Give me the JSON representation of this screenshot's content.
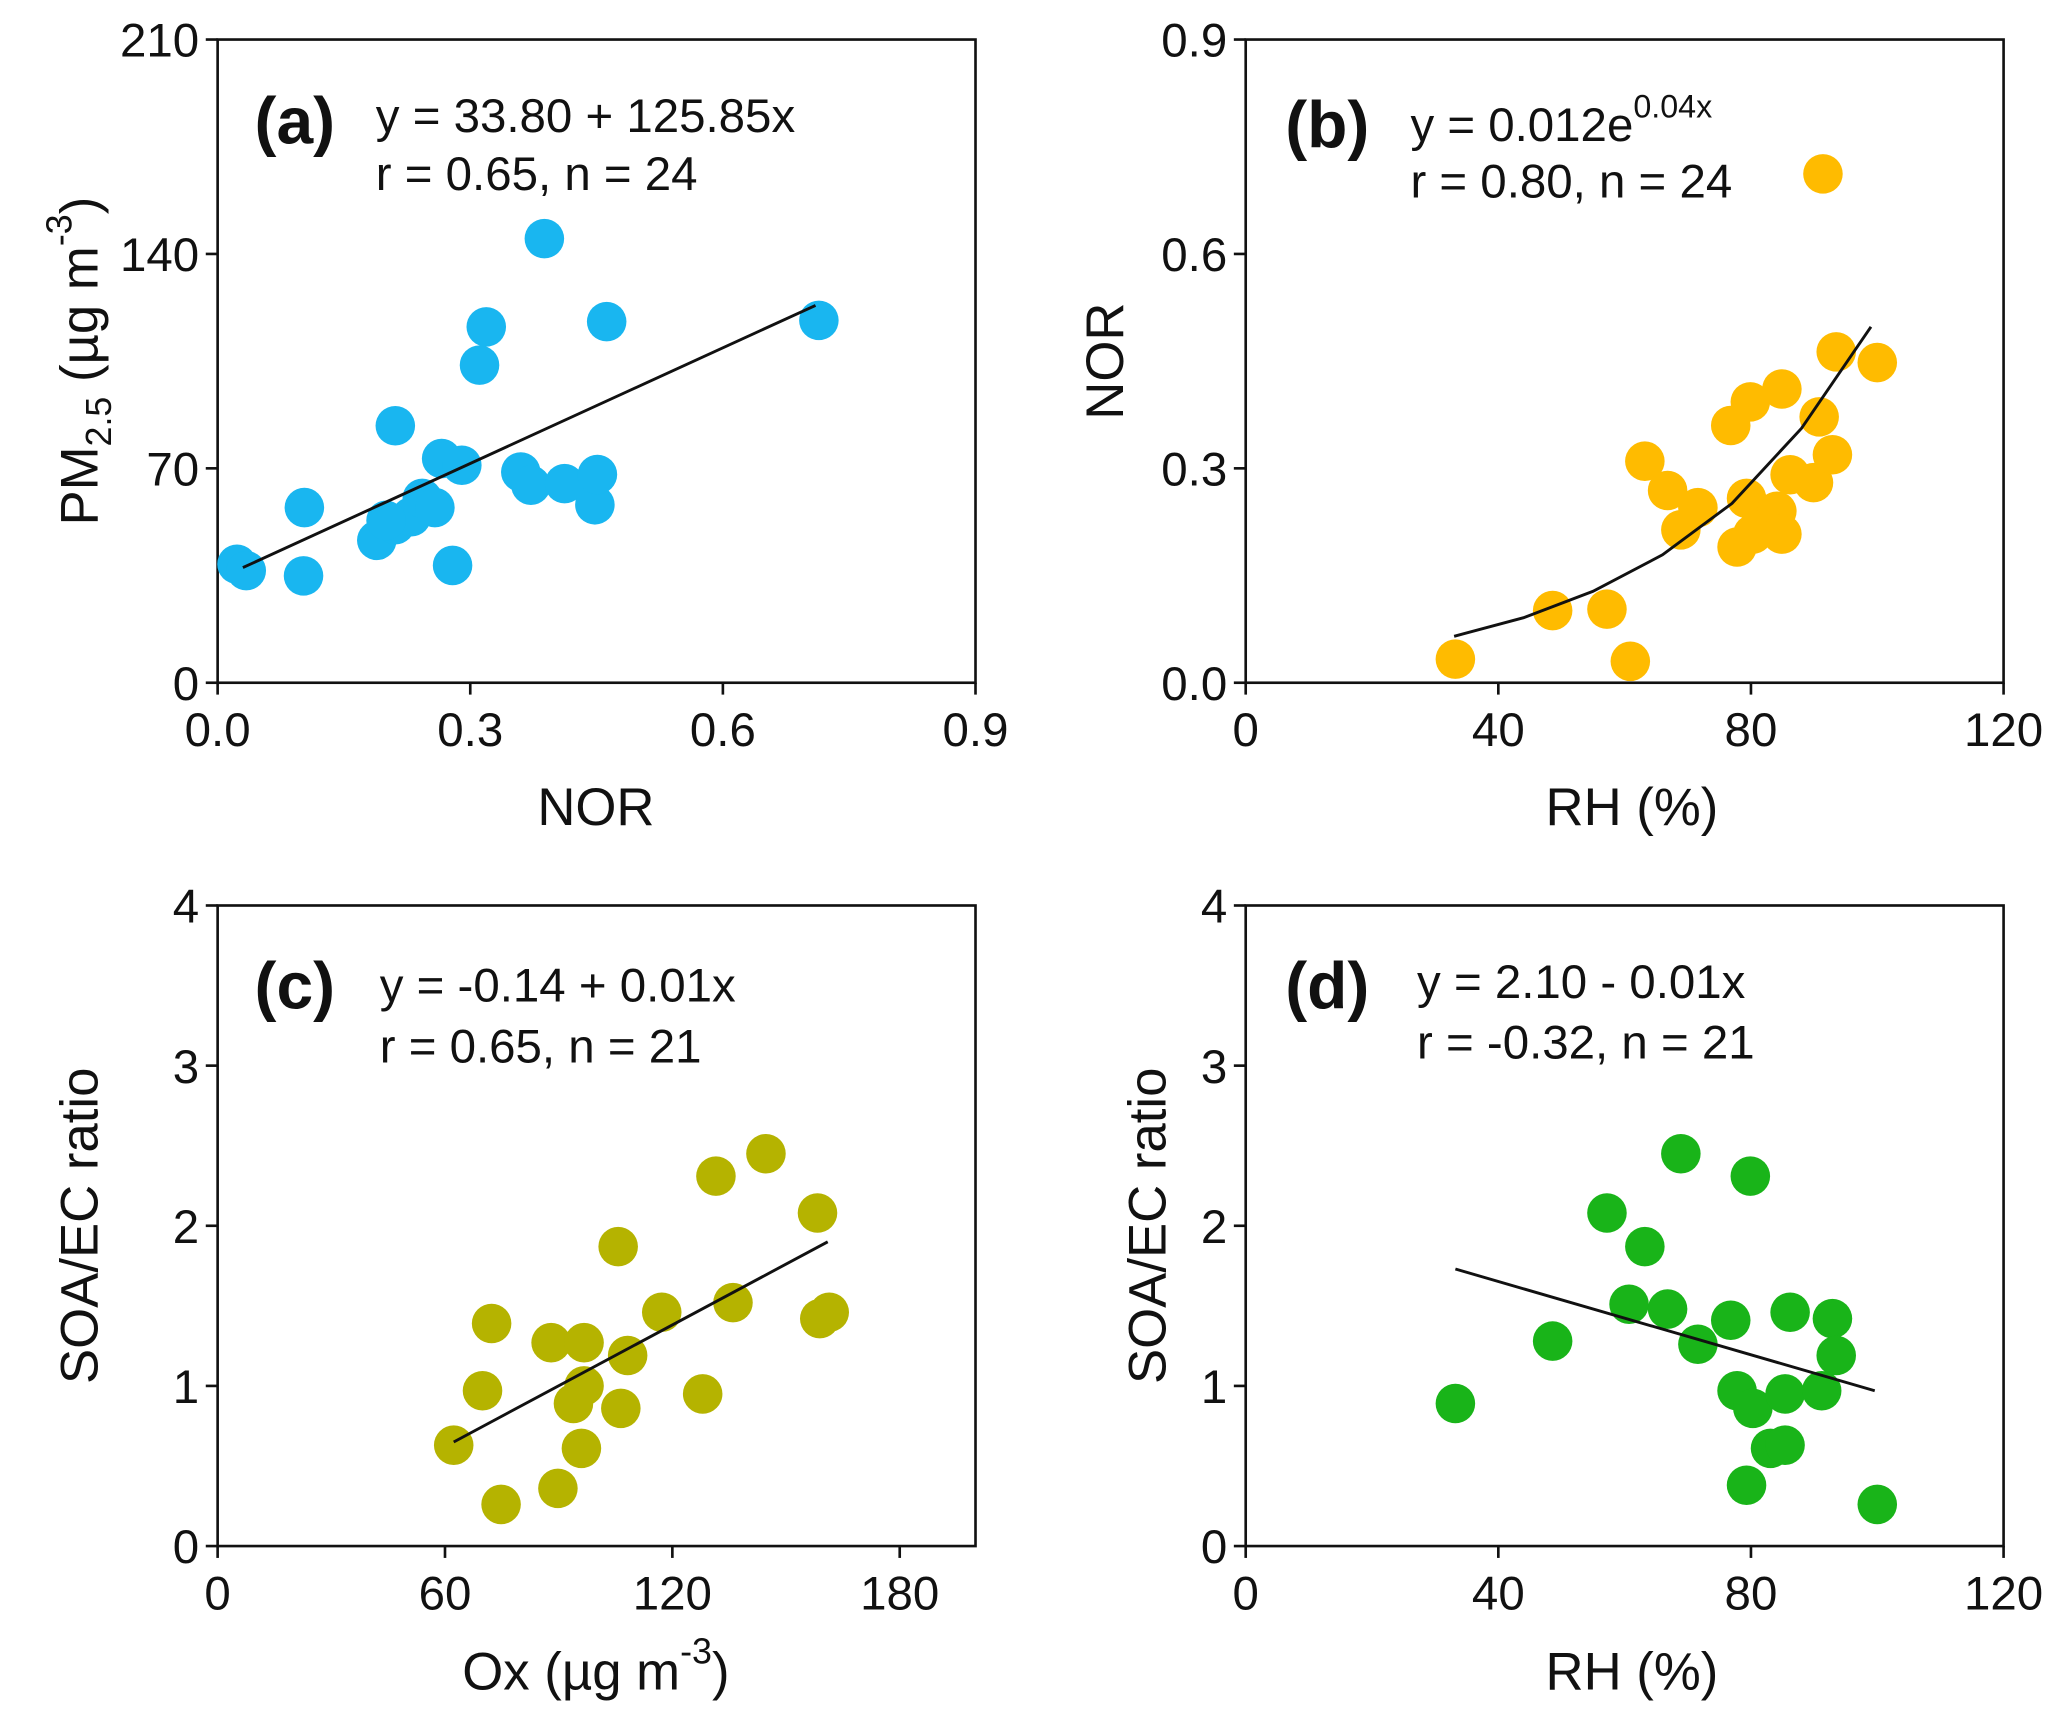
{
  "chart_data": [
    {
      "type": "scatter",
      "panel_label": "(a)",
      "equation": [
        "y = 33.80 + 125.85x"
      ],
      "stats": "r = 0.65, n = 24",
      "x_label": [
        "NOR"
      ],
      "y_label": [
        "PM",
        "2.5",
        " (µg m",
        "-3",
        ")"
      ],
      "color": "#19b6f0",
      "xlim": [
        0,
        0.9
      ],
      "xticks": [
        {
          "value": 0,
          "label": "0.0"
        },
        0.3,
        0.6,
        0.9
      ],
      "ylim": [
        0,
        210
      ],
      "yticks": [
        0,
        70,
        140,
        210
      ],
      "x": [
        0.023,
        0.034,
        0.103,
        0.102,
        0.189,
        0.211,
        0.211,
        0.23,
        0.243,
        0.258,
        0.266,
        0.279,
        0.29,
        0.311,
        0.319,
        0.36,
        0.372,
        0.388,
        0.412,
        0.448,
        0.451,
        0.462,
        0.714,
        0.2
      ],
      "values": [
        38.7,
        36.6,
        57.2,
        34.9,
        46.5,
        83.9,
        51.6,
        54.2,
        60.2,
        57.2,
        73.2,
        38.3,
        71.0,
        103.7,
        116.2,
        68.8,
        64.5,
        145.0,
        65.0,
        58.1,
        68.0,
        117.9,
        118.3,
        53.0
      ],
      "fit_line": {
        "x": [
          0.03,
          0.71
        ],
        "values": [
          37.6,
          123.2
        ]
      }
    },
    {
      "type": "scatter",
      "panel_label": "(b)",
      "equation": [
        "y = 0.012e",
        "0.04x"
      ],
      "stats": "r = 0.80, n = 24",
      "x_label": [
        "RH (%)"
      ],
      "y_label": [
        "NOR"
      ],
      "color": "#ffbb00",
      "xlim": [
        0,
        120
      ],
      "xticks": [
        0,
        40,
        80,
        120
      ],
      "ylim": [
        0,
        0.9
      ],
      "yticks": [
        {
          "value": 0,
          "label": "0.0"
        },
        0.3,
        0.6,
        0.9
      ],
      "x": [
        33.2,
        48.6,
        57.2,
        60.9,
        63.2,
        66.8,
        68.9,
        71.6,
        76.8,
        77.8,
        79.3,
        79.9,
        80.3,
        82.4,
        84.1,
        84.9,
        84.9,
        86.2,
        89.9,
        90.8,
        92.9,
        93.5,
        100.0,
        91.4
      ],
      "values": [
        0.033,
        0.101,
        0.103,
        0.03,
        0.31,
        0.269,
        0.214,
        0.245,
        0.36,
        0.19,
        0.258,
        0.393,
        0.208,
        0.227,
        0.24,
        0.208,
        0.411,
        0.291,
        0.28,
        0.372,
        0.319,
        0.463,
        0.448,
        0.712
      ],
      "fit_line": {
        "x": [
          33,
          44,
          55,
          66,
          77,
          88,
          99
        ],
        "values": [
          0.065,
          0.091,
          0.128,
          0.179,
          0.251,
          0.356,
          0.498
        ]
      }
    },
    {
      "type": "scatter",
      "panel_label": "(c)",
      "equation": [
        "y = -0.14 + 0.01x"
      ],
      "stats": "r = 0.65, n = 21",
      "x_label": [
        "Ox (µg m",
        "-3",
        ")"
      ],
      "y_label": [
        "SOA/EC ratio"
      ],
      "color": "#b5b300",
      "xlim": [
        0,
        200
      ],
      "xticks": [
        0,
        60,
        120,
        180
      ],
      "ylim": [
        0,
        4
      ],
      "yticks": [
        0,
        1,
        2,
        3,
        4
      ],
      "x": [
        62.3,
        69.9,
        72.3,
        74.8,
        88.0,
        89.8,
        93.9,
        96.7,
        96.7,
        96.0,
        105.7,
        106.4,
        108.2,
        117.2,
        128.0,
        131.5,
        136.0,
        144.7,
        158.3,
        158.9,
        161.4
      ],
      "values": [
        0.63,
        0.97,
        1.39,
        0.26,
        1.27,
        0.36,
        0.89,
        1.27,
        1.0,
        0.61,
        1.87,
        0.86,
        1.19,
        1.46,
        0.95,
        2.31,
        1.52,
        2.45,
        2.08,
        1.42,
        1.46
      ],
      "fit_line": {
        "x": [
          62.3,
          161.0
        ],
        "values": [
          0.65,
          1.9
        ]
      }
    },
    {
      "type": "scatter",
      "panel_label": "(d)",
      "equation": [
        "y = 2.10 - 0.01x"
      ],
      "stats": "r = -0.32, n = 21",
      "x_label": [
        "RH (%)"
      ],
      "y_label": [
        "SOA/EC ratio"
      ],
      "color": "#19b419",
      "xlim": [
        0,
        120
      ],
      "xticks": [
        0,
        40,
        80,
        120
      ],
      "ylim": [
        0,
        4
      ],
      "yticks": [
        0,
        1,
        2,
        3,
        4
      ],
      "x": [
        33.2,
        48.6,
        57.2,
        60.7,
        63.2,
        66.8,
        68.9,
        71.6,
        76.8,
        77.8,
        79.3,
        79.9,
        80.3,
        83.1,
        85.4,
        85.4,
        86.2,
        91.2,
        92.9,
        93.5,
        100.0
      ],
      "values": [
        0.89,
        1.28,
        2.08,
        1.51,
        1.87,
        1.48,
        2.45,
        1.26,
        1.41,
        0.97,
        0.38,
        2.31,
        0.86,
        0.61,
        0.95,
        0.63,
        1.46,
        0.97,
        1.42,
        1.19,
        0.26
      ],
      "fit_line": {
        "x": [
          33.2,
          99.6
        ],
        "values": [
          1.73,
          0.97
        ]
      }
    }
  ]
}
